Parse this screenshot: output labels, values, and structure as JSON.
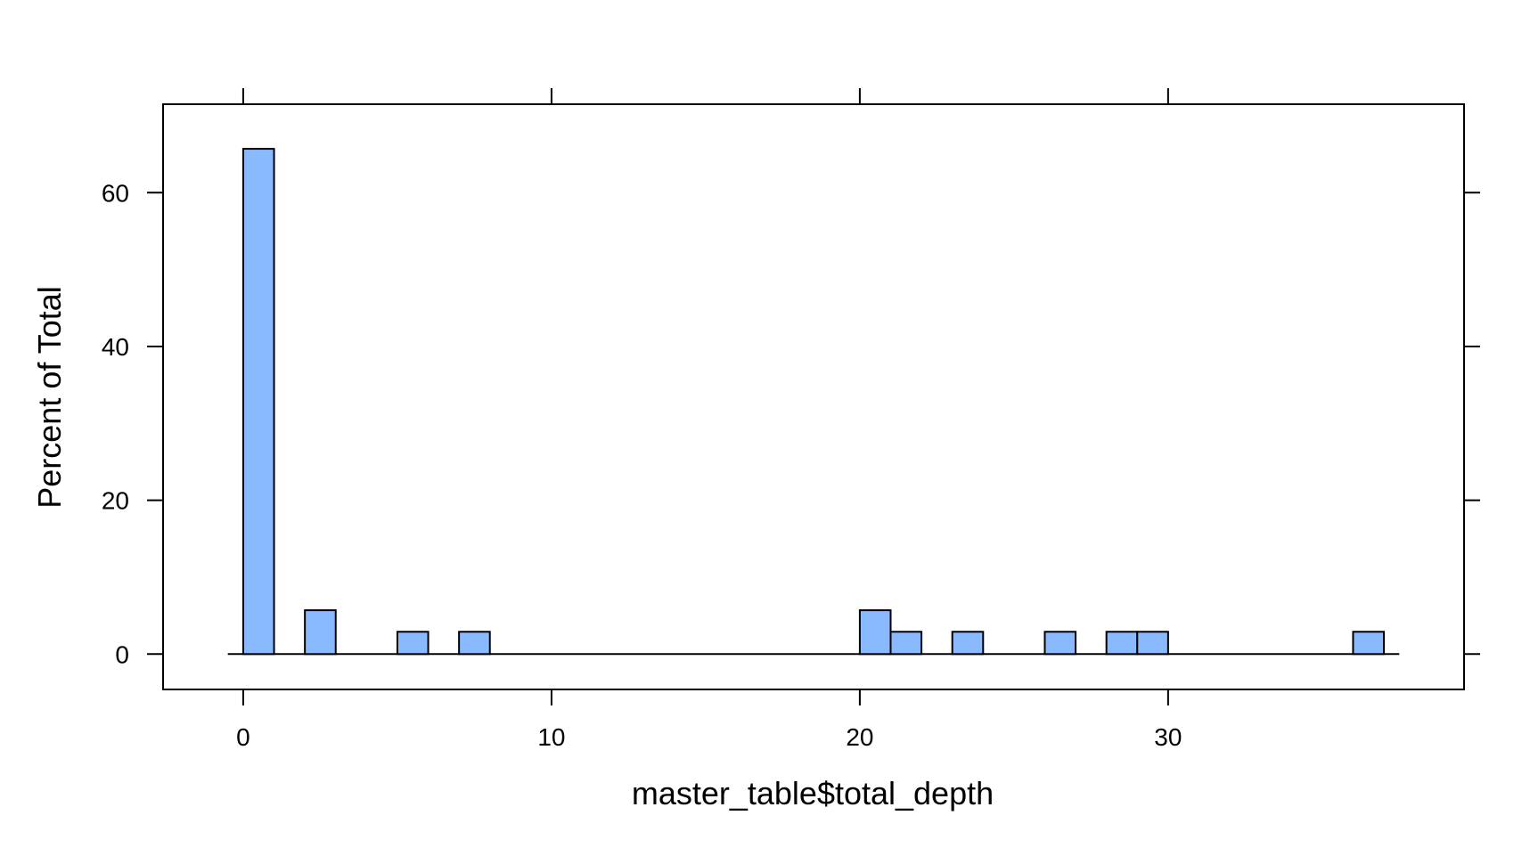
{
  "chart_data": {
    "type": "bar",
    "xlabel": "master_table$total_depth",
    "ylabel": "Percent of Total",
    "xlim": [
      -2.6,
      39.6
    ],
    "ylim": [
      -4.6,
      71.5
    ],
    "x_ticks": [
      0,
      10,
      20,
      30
    ],
    "y_ticks": [
      0,
      20,
      40,
      60
    ],
    "bin_width": 1,
    "bins": [
      {
        "x0": 0,
        "x1": 1,
        "value": 65.7
      },
      {
        "x0": 1,
        "x1": 2,
        "value": 0
      },
      {
        "x0": 2,
        "x1": 3,
        "value": 5.7
      },
      {
        "x0": 3,
        "x1": 4,
        "value": 0
      },
      {
        "x0": 4,
        "x1": 5,
        "value": 0
      },
      {
        "x0": 5,
        "x1": 6,
        "value": 2.9
      },
      {
        "x0": 6,
        "x1": 7,
        "value": 0
      },
      {
        "x0": 7,
        "x1": 8,
        "value": 2.9
      },
      {
        "x0": 8,
        "x1": 9,
        "value": 0
      },
      {
        "x0": 9,
        "x1": 10,
        "value": 0
      },
      {
        "x0": 10,
        "x1": 11,
        "value": 0
      },
      {
        "x0": 11,
        "x1": 12,
        "value": 0
      },
      {
        "x0": 12,
        "x1": 13,
        "value": 0
      },
      {
        "x0": 13,
        "x1": 14,
        "value": 0
      },
      {
        "x0": 14,
        "x1": 15,
        "value": 0
      },
      {
        "x0": 15,
        "x1": 16,
        "value": 0
      },
      {
        "x0": 16,
        "x1": 17,
        "value": 0
      },
      {
        "x0": 17,
        "x1": 18,
        "value": 0
      },
      {
        "x0": 18,
        "x1": 19,
        "value": 0
      },
      {
        "x0": 19,
        "x1": 20,
        "value": 0
      },
      {
        "x0": 20,
        "x1": 21,
        "value": 5.7
      },
      {
        "x0": 21,
        "x1": 22,
        "value": 2.9
      },
      {
        "x0": 22,
        "x1": 23,
        "value": 0
      },
      {
        "x0": 23,
        "x1": 24,
        "value": 2.9
      },
      {
        "x0": 24,
        "x1": 25,
        "value": 0
      },
      {
        "x0": 25,
        "x1": 26,
        "value": 0
      },
      {
        "x0": 26,
        "x1": 27,
        "value": 2.9
      },
      {
        "x0": 27,
        "x1": 28,
        "value": 0
      },
      {
        "x0": 28,
        "x1": 29,
        "value": 2.9
      },
      {
        "x0": 29,
        "x1": 30,
        "value": 2.9
      },
      {
        "x0": 30,
        "x1": 31,
        "value": 0
      },
      {
        "x0": 31,
        "x1": 32,
        "value": 0
      },
      {
        "x0": 32,
        "x1": 33,
        "value": 0
      },
      {
        "x0": 33,
        "x1": 34,
        "value": 0
      },
      {
        "x0": 34,
        "x1": 35,
        "value": 0
      },
      {
        "x0": 35,
        "x1": 36,
        "value": 0
      },
      {
        "x0": 36,
        "x1": 37,
        "value": 2.9
      }
    ],
    "grid": false,
    "colors": {
      "bar_fill": "#89B9FF",
      "bar_stroke": "#000000",
      "axis": "#000000"
    }
  }
}
